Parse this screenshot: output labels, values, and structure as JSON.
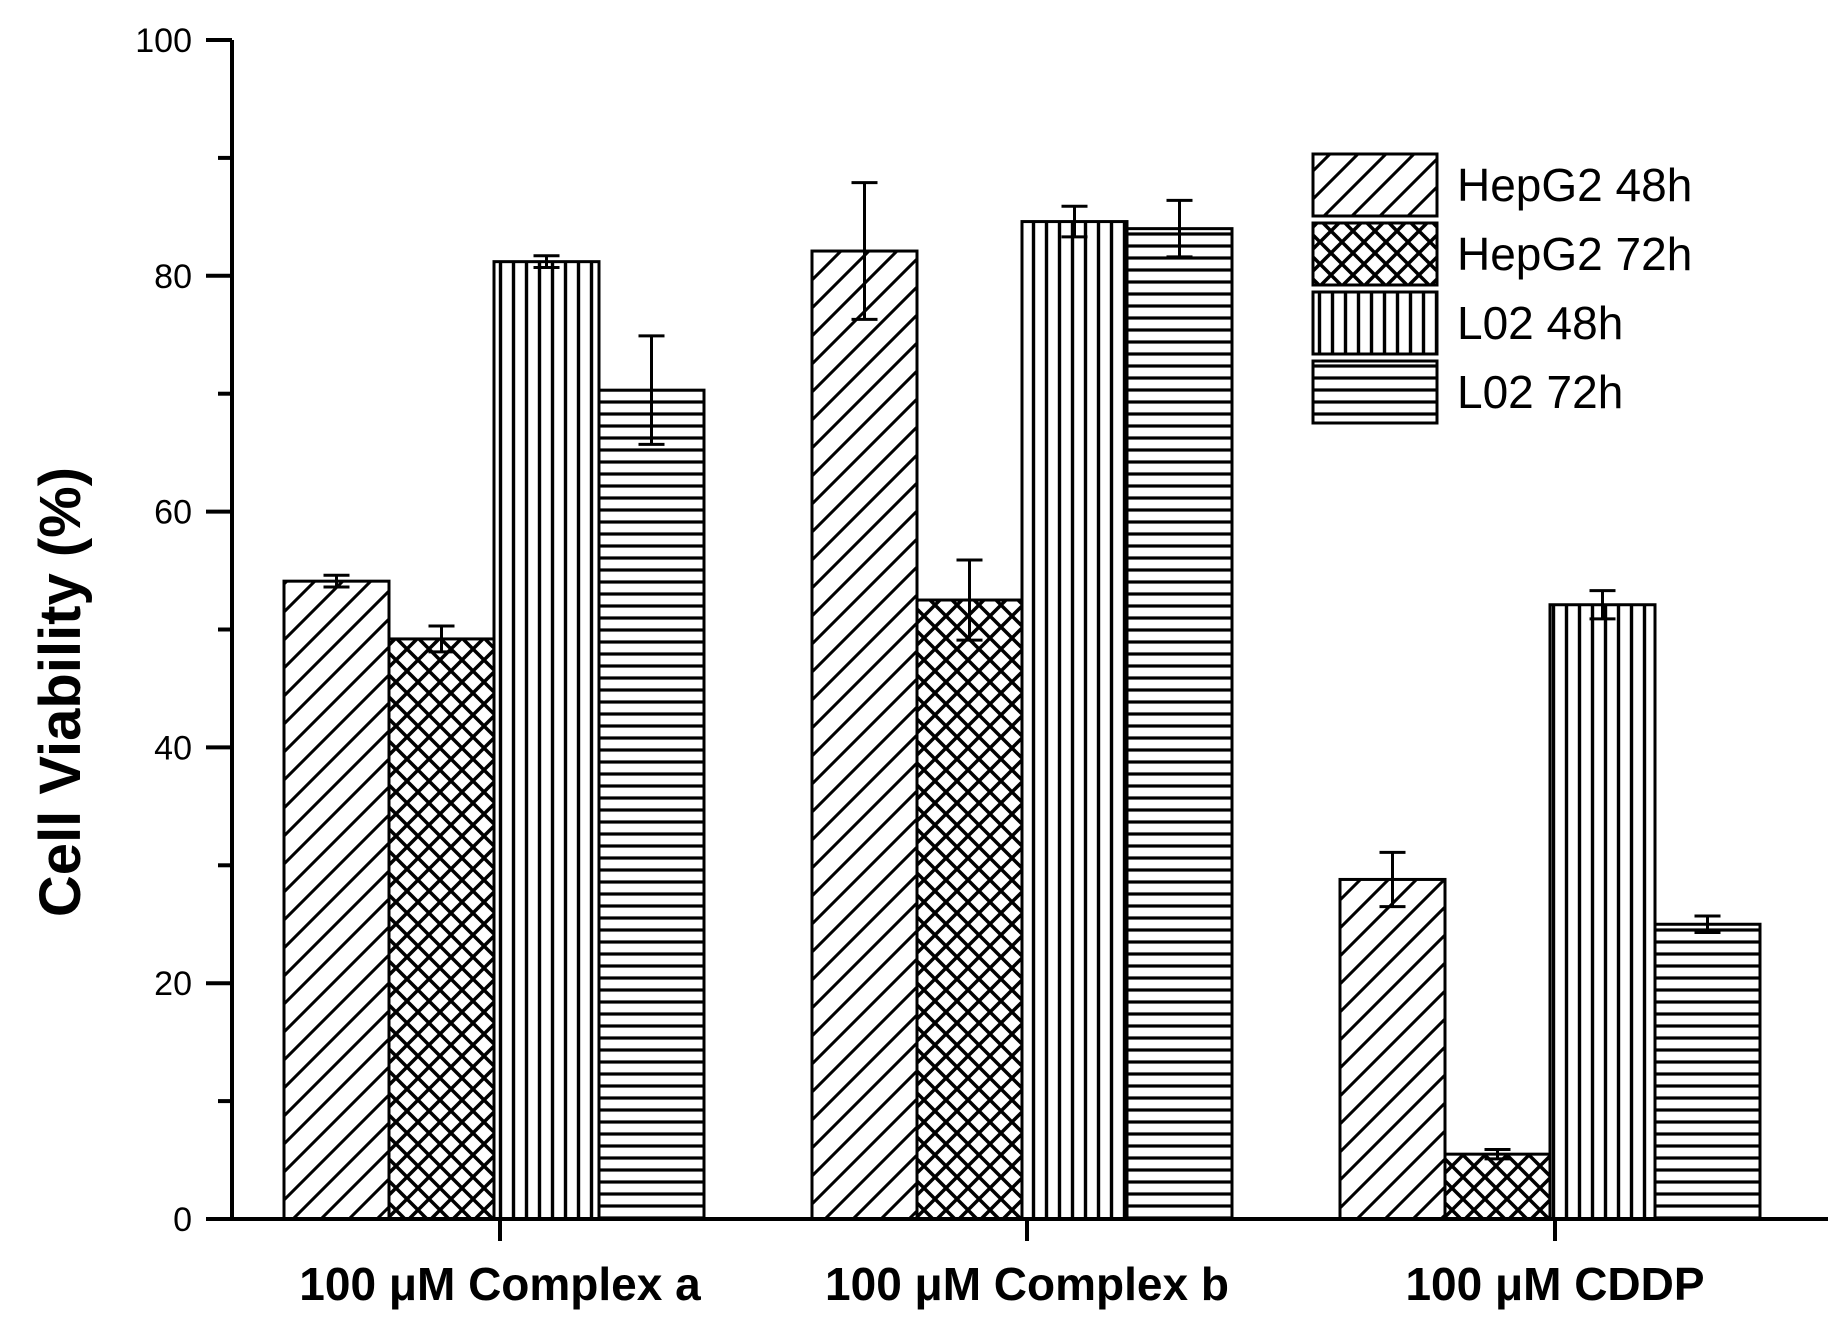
{
  "chart_data": {
    "type": "bar",
    "title": "",
    "xlabel": "",
    "ylabel": "Cell Viability (%)",
    "ylim": [
      0,
      100
    ],
    "yticks": [
      0,
      20,
      40,
      60,
      80,
      100
    ],
    "yticks_labels": [
      "0",
      "20",
      "40",
      "60",
      "80",
      "100"
    ],
    "grid": false,
    "legend_position": "top-right",
    "categories": [
      "100 μM Complex a",
      "100 μM Complex b",
      "100 μM CDDP"
    ],
    "series": [
      {
        "name": "HepG2 48h",
        "pattern": "diagonal",
        "values": [
          54.1,
          82.1,
          28.8
        ],
        "errors": [
          0.5,
          5.8,
          2.3
        ]
      },
      {
        "name": "HepG2 72h",
        "pattern": "crosshatch",
        "values": [
          49.2,
          52.5,
          5.5
        ],
        "errors": [
          1.1,
          3.4,
          0.4
        ]
      },
      {
        "name": "L02 48h",
        "pattern": "vertical",
        "values": [
          81.2,
          84.6,
          52.1
        ],
        "errors": [
          0.5,
          1.3,
          1.2
        ]
      },
      {
        "name": "L02 72h",
        "pattern": "horizontal",
        "values": [
          70.3,
          84.0,
          25.0
        ],
        "errors": [
          4.6,
          2.4,
          0.7
        ]
      }
    ]
  }
}
